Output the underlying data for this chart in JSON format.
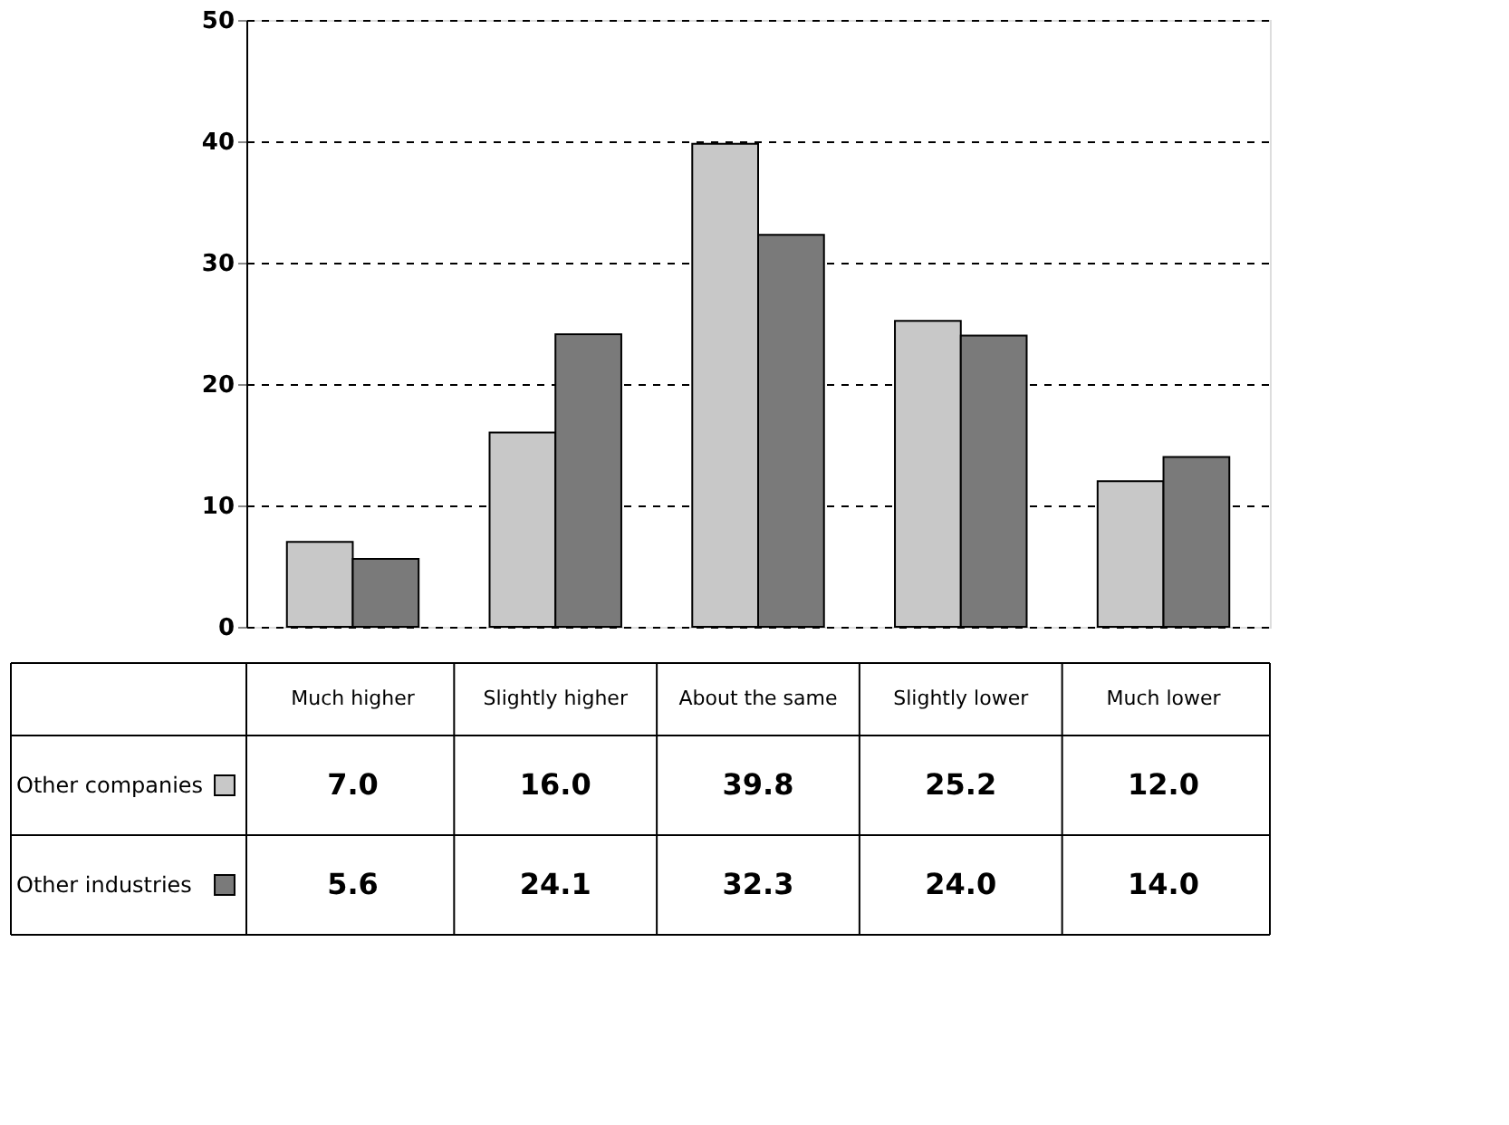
{
  "chart_data": {
    "type": "bar",
    "categories": [
      "Much higher",
      "Slightly higher",
      "About the same",
      "Slightly lower",
      "Much lower"
    ],
    "series": [
      {
        "name": "Other companies",
        "color": "#c8c8c8",
        "values": [
          7.0,
          16.0,
          39.8,
          25.2,
          12.0
        ],
        "value_labels": [
          "7.0",
          "16.0",
          "39.8",
          "25.2",
          "12.0"
        ]
      },
      {
        "name": "Other industries",
        "color": "#7a7a7a",
        "values": [
          5.6,
          24.1,
          32.3,
          24.0,
          14.0
        ],
        "value_labels": [
          "5.6",
          "24.1",
          "32.3",
          "24.0",
          "14.0"
        ]
      }
    ],
    "ylim": [
      0,
      50
    ],
    "yticks": [
      0,
      10,
      20,
      30,
      40,
      50
    ],
    "grid": "y",
    "legend": "bottom"
  }
}
